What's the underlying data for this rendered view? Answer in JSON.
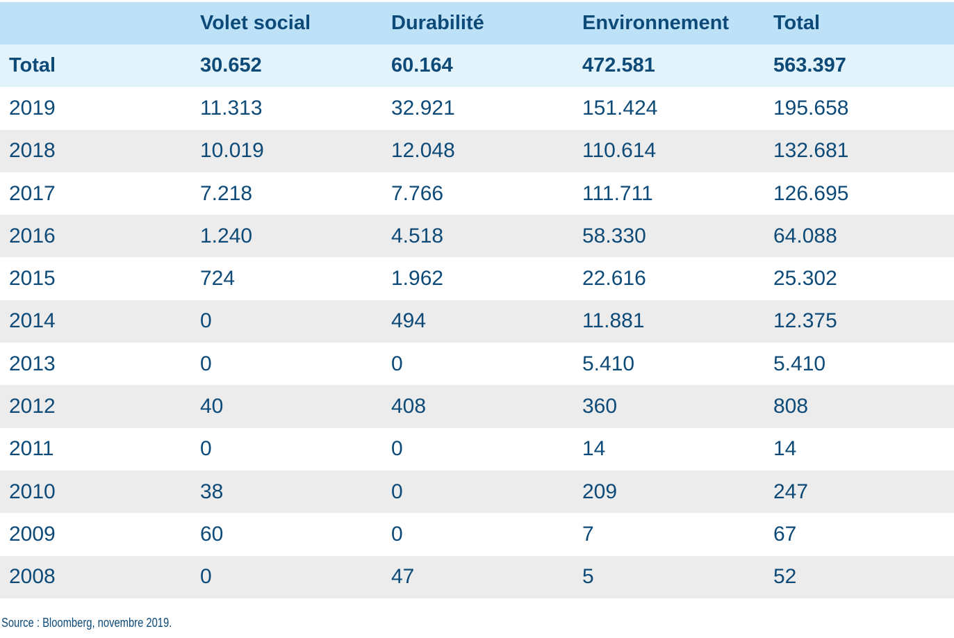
{
  "header": [
    "",
    "Volet social",
    "Durabilité",
    "Environnement",
    "Total"
  ],
  "total_row": [
    "Total",
    "30.652",
    "60.164",
    "472.581",
    "563.397"
  ],
  "rows": [
    [
      "2019",
      "11.313",
      "32.921",
      "151.424",
      "195.658"
    ],
    [
      "2018",
      "10.019",
      "12.048",
      "110.614",
      "132.681"
    ],
    [
      "2017",
      "7.218",
      "7.766",
      "111.711",
      "126.695"
    ],
    [
      "2016",
      "1.240",
      "4.518",
      "58.330",
      "64.088"
    ],
    [
      "2015",
      "724",
      "1.962",
      "22.616",
      "25.302"
    ],
    [
      "2014",
      "0",
      "494",
      "11.881",
      "12.375"
    ],
    [
      "2013",
      "0",
      "0",
      "5.410",
      "5.410"
    ],
    [
      "2012",
      "40",
      "408",
      "360",
      "808"
    ],
    [
      "2011",
      "0",
      "0",
      "14",
      "14"
    ],
    [
      "2010",
      "38",
      "0",
      "209",
      "247"
    ],
    [
      "2009",
      "60",
      "0",
      "7",
      "67"
    ],
    [
      "2008",
      "0",
      "47",
      "5",
      "52"
    ]
  ],
  "source": "Source : Bloomberg, novembre 2019.",
  "colors": {
    "text": "#0d4a78",
    "header_bg": "#bde2f8",
    "total_bg": "#e3f3fc",
    "stripe_bg": "#ececec"
  }
}
